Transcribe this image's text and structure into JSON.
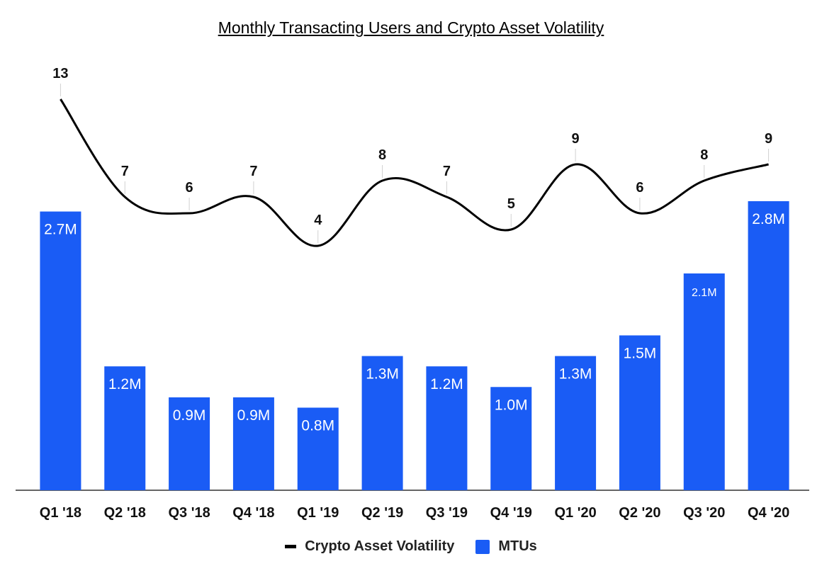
{
  "chart_data": {
    "type": "bar",
    "title": "Monthly Transacting Users and Crypto Asset Volatility",
    "categories": [
      "Q1 '18",
      "Q2 '18",
      "Q3 '18",
      "Q4 '18",
      "Q1 '19",
      "Q2 '19",
      "Q3 '19",
      "Q4 '19",
      "Q1 '20",
      "Q2 '20",
      "Q3 '20",
      "Q4 '20"
    ],
    "series": [
      {
        "name": "MTUs",
        "type": "bar",
        "color": "#1a5cf5",
        "values": [
          2.7,
          1.2,
          0.9,
          0.9,
          0.8,
          1.3,
          1.2,
          1.0,
          1.3,
          1.5,
          2.1,
          2.8
        ],
        "labels": [
          "2.7M",
          "1.2M",
          "0.9M",
          "0.9M",
          "0.8M",
          "1.3M",
          "1.2M",
          "1.0M",
          "1.3M",
          "1.5M",
          "2.1M",
          "2.8M"
        ]
      },
      {
        "name": "Crypto Asset Volatility",
        "type": "line",
        "color": "#000000",
        "values": [
          13,
          7,
          6,
          7,
          4,
          8,
          7,
          5,
          9,
          6,
          8,
          9
        ],
        "labels": [
          "13",
          "7",
          "6",
          "7",
          "4",
          "8",
          "7",
          "5",
          "9",
          "6",
          "8",
          "9"
        ]
      }
    ],
    "legend_position": "bottom",
    "grid": false
  }
}
